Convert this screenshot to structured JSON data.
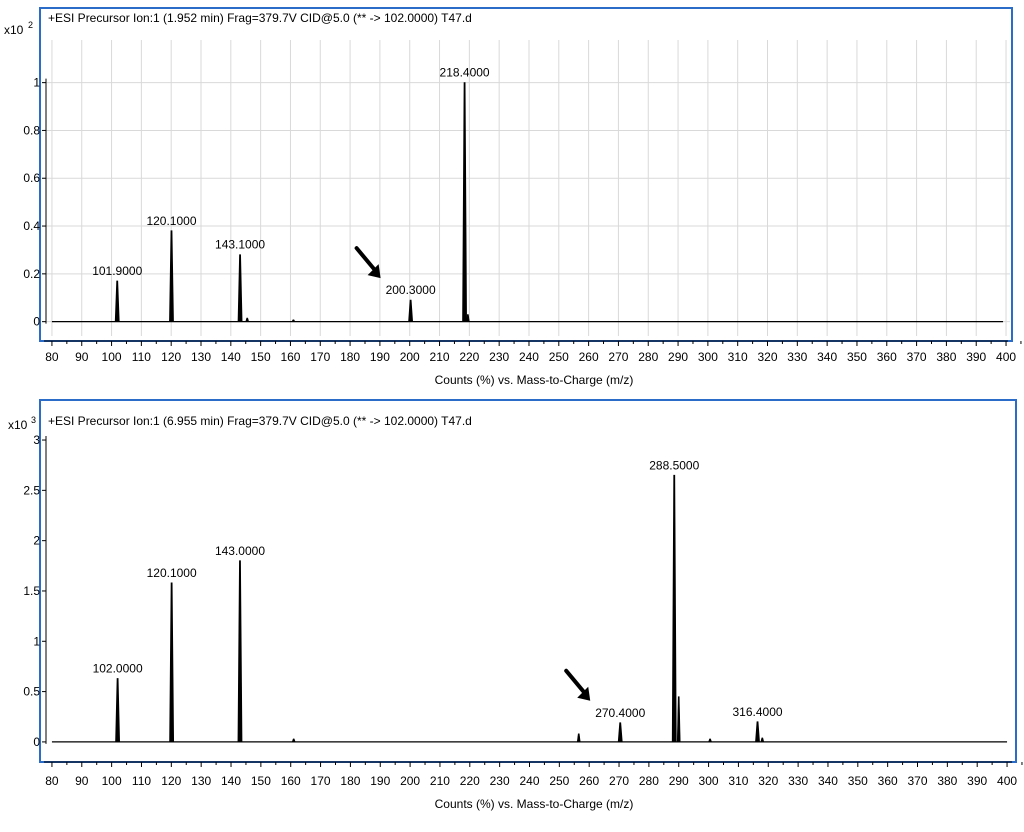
{
  "chart_data": [
    {
      "type": "line",
      "title": "+ESI Precursor Ion:1 (1.952 min) Frag=379.7V CID@5.0 (** -> 102.0000) T47.d",
      "xlabel": "Counts (%) vs. Mass-to-Charge (m/z)",
      "ylabel_multiplier": "x10",
      "ylabel_exponent": "2",
      "xlim": [
        76,
        402
      ],
      "ylim": [
        -0.06,
        1.17
      ],
      "xticks": [
        80,
        90,
        100,
        110,
        120,
        130,
        140,
        150,
        160,
        170,
        180,
        190,
        200,
        210,
        220,
        230,
        240,
        250,
        260,
        270,
        280,
        290,
        300,
        310,
        320,
        330,
        340,
        350,
        360,
        370,
        380,
        390,
        400
      ],
      "yticks": [
        0,
        0.2,
        0.4,
        0.6,
        0.8,
        1
      ],
      "ytick_labels": [
        "0",
        "0.2",
        "0.4",
        "0.6",
        "0.8",
        "1"
      ],
      "grid": true,
      "baseline": [
        80,
        399
      ],
      "peaks": [
        {
          "mz": 101.9,
          "intensity": 0.17,
          "label": "101.9000"
        },
        {
          "mz": 120.1,
          "intensity": 0.38,
          "label": "120.1000"
        },
        {
          "mz": 143.1,
          "intensity": 0.28,
          "label": "143.1000"
        },
        {
          "mz": 200.3,
          "intensity": 0.09,
          "label": "200.3000"
        },
        {
          "mz": 218.4,
          "intensity": 1.0,
          "label": "218.4000"
        }
      ],
      "minor_peaks": [
        {
          "mz": 145.5,
          "intensity": 0.015
        },
        {
          "mz": 161,
          "intensity": 0.008
        },
        {
          "mz": 219.5,
          "intensity": 0.03
        }
      ],
      "arrow_target_mz": 200.3
    },
    {
      "type": "line",
      "title": "+ESI Precursor Ion:1 (6.955 min) Frag=379.7V CID@5.0 (** -> 102.0000) T47.d",
      "xlabel": "Counts (%) vs. Mass-to-Charge (m/z)",
      "ylabel_multiplier": "x10",
      "ylabel_exponent": "3",
      "xlim": [
        76,
        403
      ],
      "ylim": [
        -0.15,
        3.05
      ],
      "xticks": [
        80,
        90,
        100,
        110,
        120,
        130,
        140,
        150,
        160,
        170,
        180,
        190,
        200,
        210,
        220,
        230,
        240,
        250,
        260,
        270,
        280,
        290,
        300,
        310,
        320,
        330,
        340,
        350,
        360,
        370,
        380,
        390,
        400
      ],
      "yticks": [
        0,
        0.5,
        1,
        1.5,
        2,
        2.5,
        3
      ],
      "ytick_labels": [
        "0",
        "0.5",
        "1",
        "1.5",
        "2",
        "2.5",
        "3"
      ],
      "grid": false,
      "baseline": [
        80,
        400
      ],
      "peaks": [
        {
          "mz": 102.0,
          "intensity": 0.63,
          "label": "102.0000"
        },
        {
          "mz": 120.1,
          "intensity": 1.58,
          "label": "120.1000"
        },
        {
          "mz": 143.0,
          "intensity": 1.8,
          "label": "143.0000"
        },
        {
          "mz": 270.4,
          "intensity": 0.19,
          "label": "270.4000"
        },
        {
          "mz": 288.5,
          "intensity": 2.65,
          "label": "288.5000"
        },
        {
          "mz": 316.4,
          "intensity": 0.2,
          "label": "316.4000"
        }
      ],
      "minor_peaks": [
        {
          "mz": 256.5,
          "intensity": 0.08
        },
        {
          "mz": 290,
          "intensity": 0.45
        },
        {
          "mz": 161,
          "intensity": 0.03
        },
        {
          "mz": 300.5,
          "intensity": 0.03
        },
        {
          "mz": 318,
          "intensity": 0.04
        }
      ],
      "arrow_target_mz": 270.4
    }
  ]
}
